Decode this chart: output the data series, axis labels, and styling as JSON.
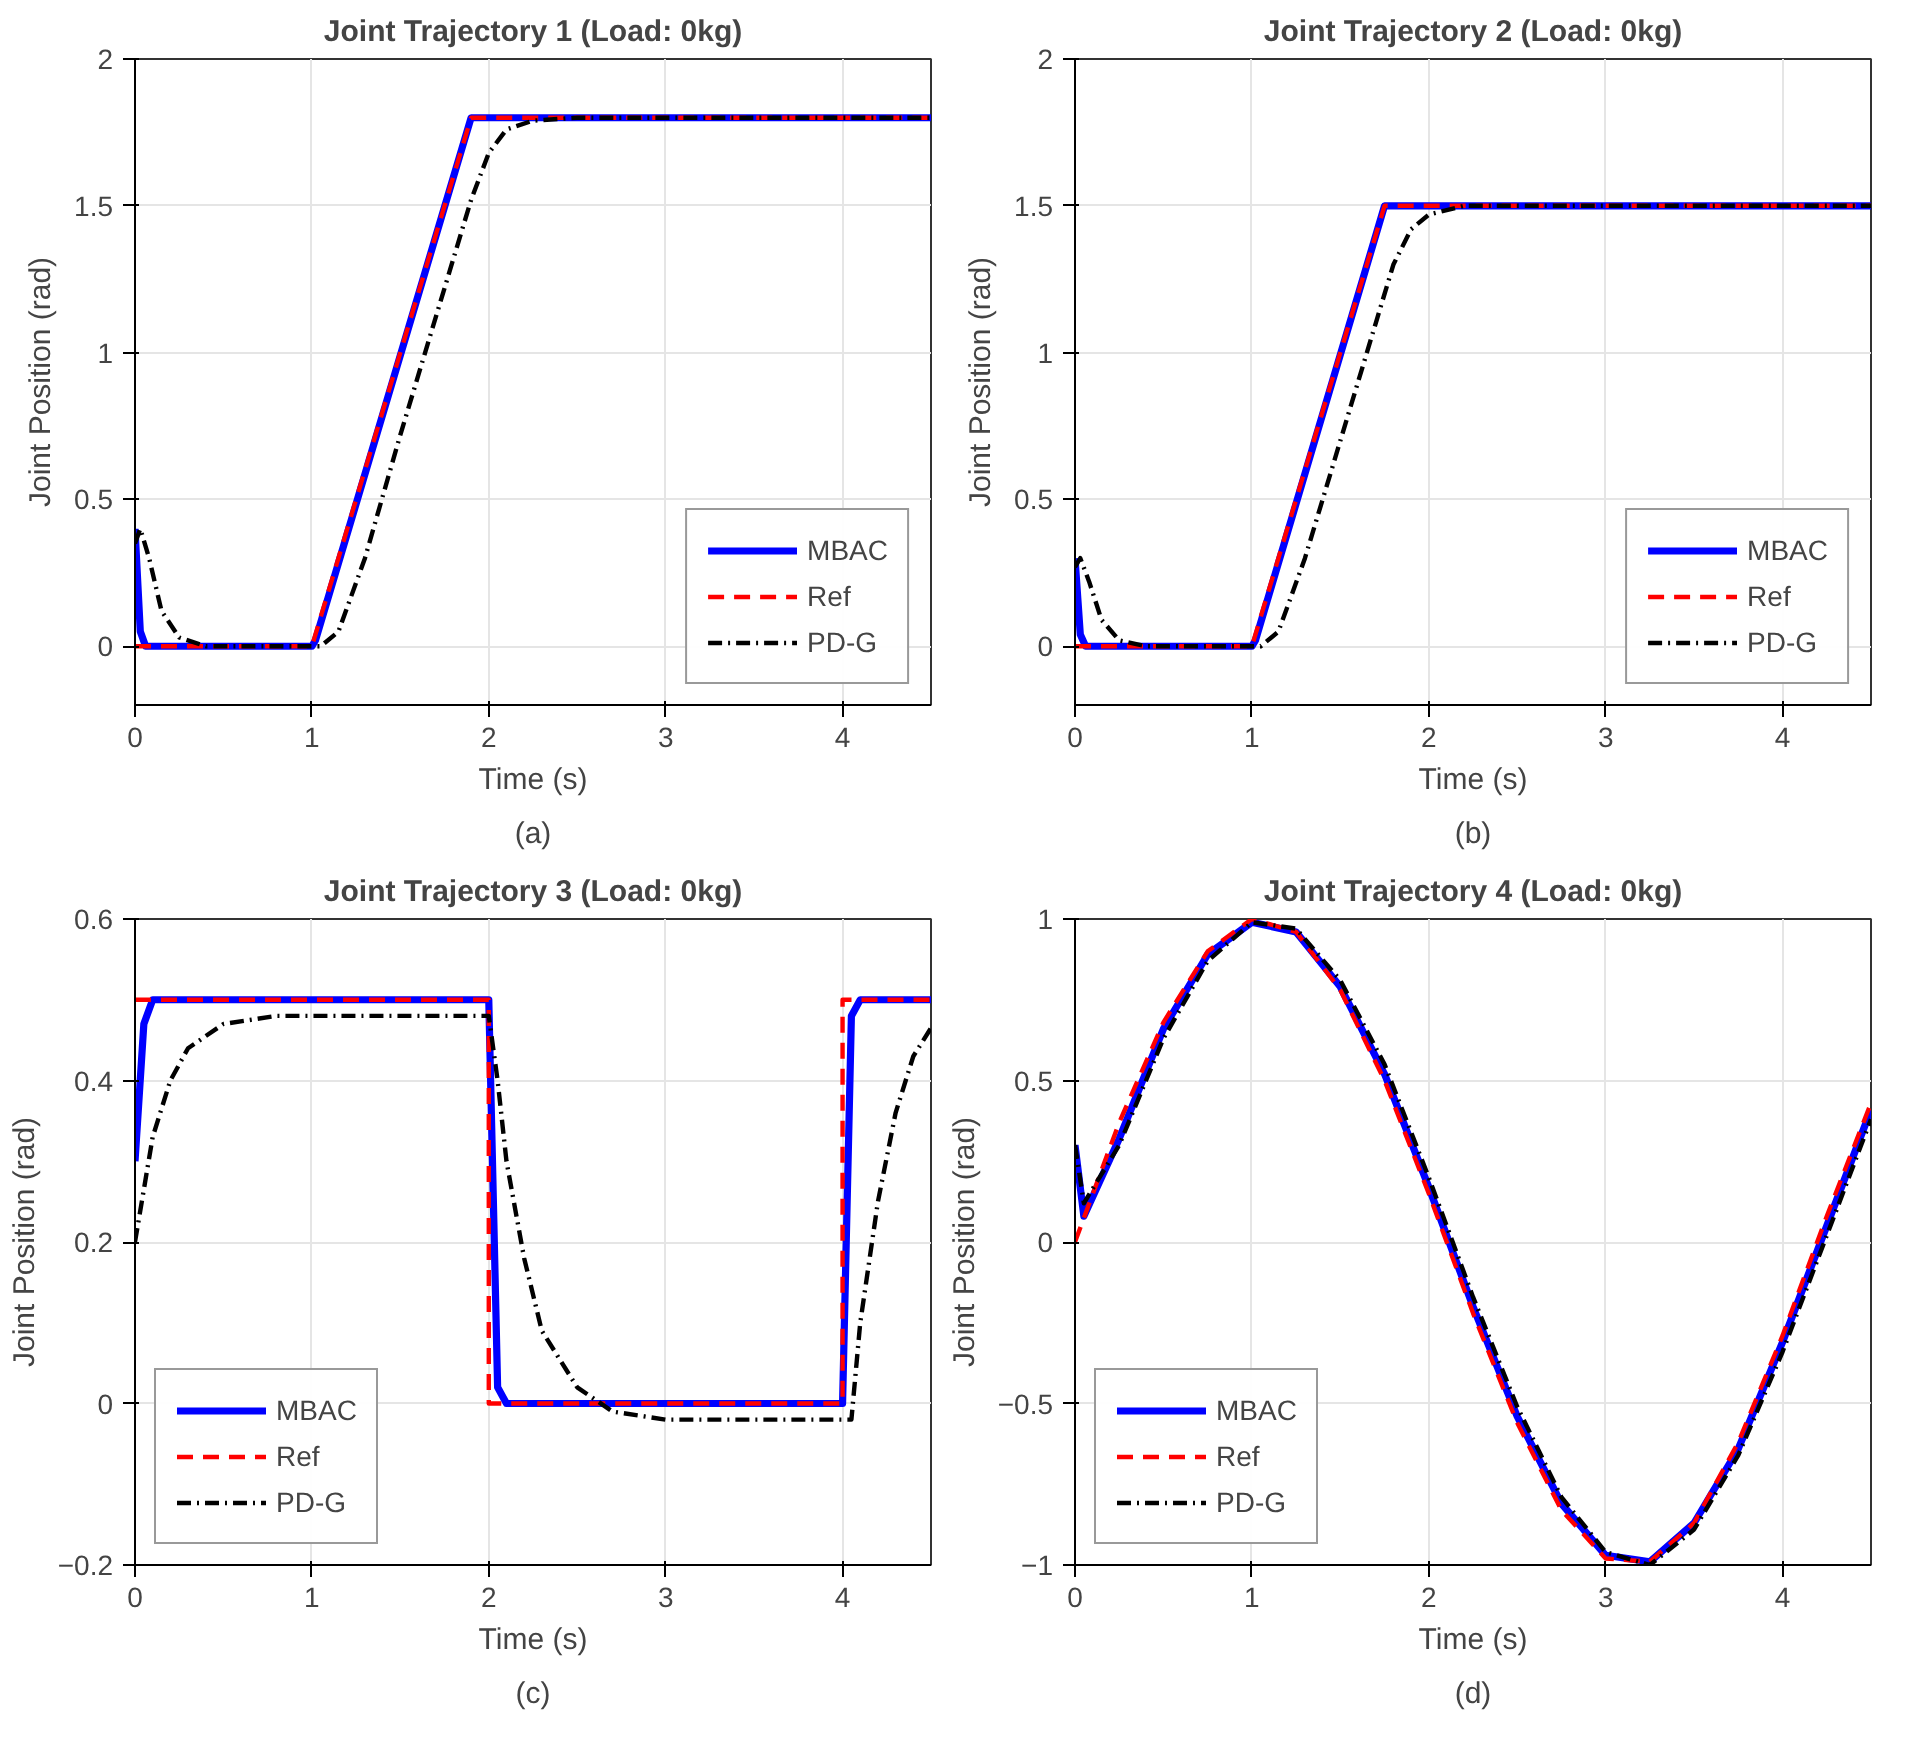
{
  "chart_data": [
    {
      "type": "line",
      "title": "Joint Trajectory 1 (Load: 0kg)",
      "xlabel": "Time (s)",
      "ylabel": "Joint Position (rad)",
      "annotations": [
        "(a)"
      ],
      "xlim": [
        0,
        4.5
      ],
      "ylim": [
        -0.2,
        2
      ],
      "xticks": [
        0,
        1,
        2,
        3,
        4
      ],
      "yticks": [
        0,
        0.5,
        1,
        1.5,
        2
      ],
      "grid": true,
      "legend": "bottom right",
      "series": [
        {
          "name": "MBAC",
          "color": "#0000ff",
          "line_style": "solid",
          "x": [
            0,
            0.03,
            0.06,
            1,
            1.02,
            1.9,
            4.5
          ],
          "values": [
            0.4,
            0.05,
            0,
            0,
            0.02,
            1.8,
            1.8
          ]
        },
        {
          "name": "Ref",
          "color": "#ff0000",
          "line_style": "dashed",
          "x": [
            0,
            1,
            1.9,
            4.5
          ],
          "values": [
            0,
            0,
            1.8,
            1.8
          ]
        },
        {
          "name": "PD-G",
          "color": "#000000",
          "line_style": "dashdot",
          "x": [
            0,
            0.03,
            0.08,
            0.15,
            0.25,
            0.4,
            1.05,
            1.15,
            1.3,
            1.5,
            1.7,
            1.8,
            1.9,
            2.0,
            2.1,
            2.25,
            2.5,
            4.5
          ],
          "values": [
            0.35,
            0.4,
            0.3,
            0.12,
            0.03,
            0,
            0,
            0.05,
            0.3,
            0.72,
            1.12,
            1.32,
            1.52,
            1.68,
            1.76,
            1.79,
            1.8,
            1.8
          ]
        }
      ]
    },
    {
      "type": "line",
      "title": "Joint Trajectory 2 (Load: 0kg)",
      "xlabel": "Time (s)",
      "ylabel": "Joint Position (rad)",
      "annotations": [
        "(b)"
      ],
      "xlim": [
        0,
        4.5
      ],
      "ylim": [
        -0.2,
        2
      ],
      "xticks": [
        0,
        1,
        2,
        3,
        4
      ],
      "yticks": [
        0,
        0.5,
        1,
        1.5,
        2
      ],
      "grid": true,
      "legend": "bottom right",
      "series": [
        {
          "name": "MBAC",
          "color": "#0000ff",
          "line_style": "solid",
          "x": [
            0,
            0.03,
            0.06,
            1,
            1.02,
            1.75,
            4.5
          ],
          "values": [
            0.3,
            0.04,
            0,
            0,
            0.02,
            1.5,
            1.5
          ]
        },
        {
          "name": "Ref",
          "color": "#ff0000",
          "line_style": "dashed",
          "x": [
            0,
            1,
            1.75,
            4.5
          ],
          "values": [
            0,
            0,
            1.5,
            1.5
          ]
        },
        {
          "name": "PD-G",
          "color": "#000000",
          "line_style": "dashdot",
          "x": [
            0,
            0.03,
            0.08,
            0.15,
            0.25,
            0.4,
            1.05,
            1.15,
            1.3,
            1.5,
            1.6,
            1.7,
            1.8,
            1.9,
            2.0,
            2.2,
            4.5
          ],
          "values": [
            0.27,
            0.3,
            0.22,
            0.09,
            0.02,
            0,
            0,
            0.05,
            0.3,
            0.7,
            0.9,
            1.1,
            1.3,
            1.42,
            1.47,
            1.5,
            1.5
          ]
        }
      ]
    },
    {
      "type": "line",
      "title": "Joint Trajectory 3 (Load: 0kg)",
      "xlabel": "Time (s)",
      "ylabel": "Joint Position (rad)",
      "annotations": [
        "(c)"
      ],
      "xlim": [
        0,
        4.5
      ],
      "ylim": [
        -0.2,
        0.6
      ],
      "xticks": [
        0,
        1,
        2,
        3,
        4
      ],
      "yticks": [
        -0.2,
        0,
        0.2,
        0.4,
        0.6
      ],
      "grid": true,
      "legend": "bottom left",
      "series": [
        {
          "name": "MBAC",
          "color": "#0000ff",
          "line_style": "solid",
          "x": [
            0,
            0.05,
            0.1,
            2,
            2.05,
            2.1,
            4,
            4.05,
            4.1,
            4.5
          ],
          "values": [
            0.3,
            0.47,
            0.5,
            0.5,
            0.02,
            0,
            0,
            0.48,
            0.5,
            0.5
          ]
        },
        {
          "name": "Ref",
          "color": "#ff0000",
          "line_style": "dashed",
          "x": [
            0,
            2,
            2,
            4,
            4,
            4.5
          ],
          "values": [
            0.5,
            0.5,
            0,
            0,
            0.5,
            0.5
          ]
        },
        {
          "name": "PD-G",
          "color": "#000000",
          "line_style": "dashdot",
          "x": [
            0,
            0.1,
            0.2,
            0.3,
            0.5,
            0.8,
            2,
            2.05,
            2.1,
            2.2,
            2.3,
            2.5,
            2.7,
            3,
            4.05,
            4.1,
            4.2,
            4.3,
            4.4,
            4.5
          ],
          "values": [
            0.2,
            0.33,
            0.4,
            0.44,
            0.47,
            0.48,
            0.48,
            0.4,
            0.3,
            0.18,
            0.09,
            0.02,
            -0.01,
            -0.02,
            -0.02,
            0.1,
            0.25,
            0.36,
            0.43,
            0.465
          ]
        }
      ]
    },
    {
      "type": "line",
      "title": "Joint Trajectory 4 (Load: 0kg)",
      "xlabel": "Time (s)",
      "ylabel": "Joint Position (rad)",
      "annotations": [
        "(d)"
      ],
      "xlim": [
        0,
        4.5
      ],
      "ylim": [
        -1,
        1
      ],
      "xticks": [
        0,
        1,
        2,
        3,
        4
      ],
      "yticks": [
        -1,
        -0.5,
        0,
        0.5,
        1
      ],
      "grid": true,
      "legend": "bottom left",
      "series": [
        {
          "name": "MBAC",
          "color": "#0000ff",
          "line_style": "solid",
          "x": [
            0,
            0.05,
            0.25,
            0.5,
            0.75,
            1,
            1.25,
            1.5,
            1.75,
            2,
            2.25,
            2.5,
            2.75,
            3,
            3.25,
            3.5,
            3.75,
            4,
            4.25,
            4.5
          ],
          "values": [
            0.3,
            0.08,
            0.32,
            0.66,
            0.89,
            0.99,
            0.96,
            0.79,
            0.52,
            0.17,
            -0.2,
            -0.54,
            -0.81,
            -0.97,
            -0.99,
            -0.87,
            -0.64,
            -0.31,
            0.05,
            0.41
          ]
        },
        {
          "name": "Ref",
          "color": "#ff0000",
          "line_style": "dashed",
          "x": [
            0,
            0.25,
            0.5,
            0.75,
            1,
            1.25,
            1.5,
            1.75,
            2,
            2.25,
            2.5,
            2.75,
            3,
            3.25,
            3.5,
            3.75,
            4,
            4.25,
            4.5
          ],
          "values": [
            0,
            0.37,
            0.68,
            0.9,
            1,
            0.96,
            0.78,
            0.5,
            0.15,
            -0.22,
            -0.56,
            -0.83,
            -0.98,
            -0.99,
            -0.87,
            -0.62,
            -0.29,
            0.08,
            0.43
          ]
        },
        {
          "name": "PD-G",
          "color": "#000000",
          "line_style": "dashdot",
          "x": [
            0,
            0.05,
            0.25,
            0.5,
            0.75,
            1,
            1.25,
            1.5,
            1.75,
            2,
            2.25,
            2.5,
            2.75,
            3,
            3.25,
            3.5,
            3.75,
            4,
            4.25,
            4.5
          ],
          "values": [
            0.3,
            0.12,
            0.3,
            0.63,
            0.87,
            0.99,
            0.97,
            0.81,
            0.55,
            0.2,
            -0.17,
            -0.51,
            -0.79,
            -0.96,
            -1,
            -0.89,
            -0.66,
            -0.34,
            0.02,
            0.38
          ]
        }
      ]
    }
  ]
}
